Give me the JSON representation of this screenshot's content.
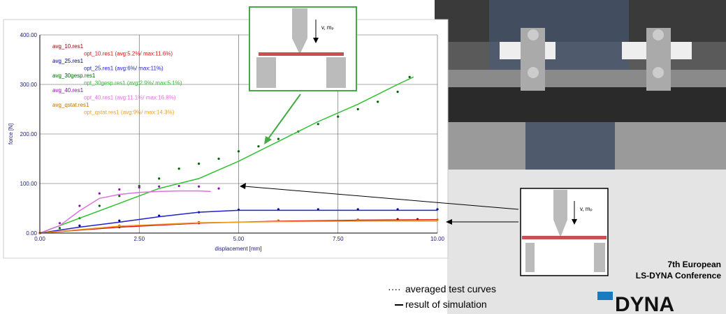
{
  "chart_data": {
    "type": "line",
    "xlabel": "displacement [mm]",
    "ylabel": "force [N]",
    "xlim": [
      0,
      10
    ],
    "ylim": [
      0,
      400
    ],
    "xticks": [
      {
        "value": 0,
        "label": "0.00"
      },
      {
        "value": 2.5,
        "label": "2.50"
      },
      {
        "value": 5,
        "label": "5.00"
      },
      {
        "value": 7.5,
        "label": "7.50"
      },
      {
        "value": 10,
        "label": "10.00"
      }
    ],
    "yticks": [
      {
        "value": 0,
        "label": "0.00"
      },
      {
        "value": 100,
        "label": "100.00"
      },
      {
        "value": 200,
        "label": "200.00"
      },
      {
        "value": 300,
        "label": "300.00"
      },
      {
        "value": 400,
        "label": "400.00"
      }
    ],
    "grid": true,
    "series": [
      {
        "name": "avg_10.res1",
        "color": "#8b0000",
        "style": "dots",
        "x": [
          0,
          2,
          4,
          6,
          8,
          9,
          9.5
        ],
        "values": [
          0,
          12,
          20,
          25,
          27,
          28,
          28
        ]
      },
      {
        "name": "opt_10.res1 (avg:5.2%/ max:11.6%)",
        "color": "#e01010",
        "style": "line",
        "x": [
          0,
          2,
          4,
          6,
          8,
          10
        ],
        "values": [
          0,
          12,
          20,
          24,
          26,
          27
        ]
      },
      {
        "name": "avg_25.res1",
        "color": "#00008b",
        "style": "dots",
        "x": [
          0,
          1,
          2,
          3,
          4,
          5,
          6,
          7,
          8,
          9,
          10
        ],
        "values": [
          0,
          15,
          25,
          35,
          42,
          47,
          48,
          48,
          48,
          48,
          48
        ]
      },
      {
        "name": "opt_25.res1 (avg:6%/ max:11%)",
        "color": "#2020d0",
        "style": "line",
        "x": [
          0,
          1,
          2,
          3,
          4,
          5,
          6,
          7,
          8,
          9,
          10
        ],
        "values": [
          0,
          12,
          22,
          33,
          42,
          46,
          46,
          46,
          46,
          46,
          46
        ]
      },
      {
        "name": "avg_30gesp.res1",
        "color": "#006400",
        "style": "dots",
        "x": [
          0.5,
          1,
          1.5,
          2,
          2.5,
          3,
          3.5,
          4,
          4.5,
          5,
          5.5,
          6,
          6.5,
          7,
          7.5,
          8,
          8.5,
          9,
          9.3
        ],
        "values": [
          10,
          30,
          55,
          75,
          95,
          110,
          130,
          140,
          150,
          165,
          175,
          190,
          205,
          220,
          235,
          250,
          265,
          285,
          315
        ]
      },
      {
        "name": "opt_30gesp.res1 (avg:2.9%/ max:5.1%)",
        "color": "#30c030",
        "style": "line",
        "x": [
          0,
          1,
          2,
          3,
          4,
          5,
          6,
          7,
          8,
          9,
          9.4
        ],
        "values": [
          0,
          30,
          60,
          90,
          110,
          145,
          185,
          225,
          260,
          300,
          315
        ]
      },
      {
        "name": "avg_40.res1",
        "color": "#8a10b0",
        "style": "dots",
        "x": [
          0,
          0.5,
          1,
          1.5,
          2,
          2.5,
          3,
          3.5,
          4,
          4.5
        ],
        "values": [
          0,
          20,
          55,
          80,
          88,
          92,
          94,
          95,
          94,
          90
        ]
      },
      {
        "name": "opt_40.res1 (avg:11.1%/ max:16.8%)",
        "color": "#e070e0",
        "style": "line",
        "x": [
          0,
          0.5,
          1,
          1.5,
          2,
          2.5,
          3,
          3.5,
          4,
          4.3
        ],
        "values": [
          0,
          15,
          45,
          70,
          78,
          82,
          84,
          85,
          85,
          84
        ]
      },
      {
        "name": "avg_qstat.res1",
        "color": "#c07000",
        "style": "dots",
        "x": [
          0,
          2,
          4,
          6,
          8,
          10
        ],
        "values": [
          0,
          15,
          22,
          25,
          27,
          27
        ]
      },
      {
        "name": "opt_qstat.res1 (avg:9%/ max:14.3%)",
        "color": "#f0a020",
        "style": "line",
        "x": [
          0,
          2,
          4,
          6,
          8,
          10
        ],
        "values": [
          0,
          14,
          21,
          23,
          24,
          24
        ]
      }
    ]
  },
  "diagrams": [
    {
      "label": "v, mₚ"
    },
    {
      "label": "v, mₚ"
    }
  ],
  "notes": {
    "averaged": "averaged test curves",
    "simulation": "result of simulation"
  },
  "conference": {
    "line1": "7th European",
    "line2": "LS-DYNA Conference"
  },
  "logo": "DYNA"
}
